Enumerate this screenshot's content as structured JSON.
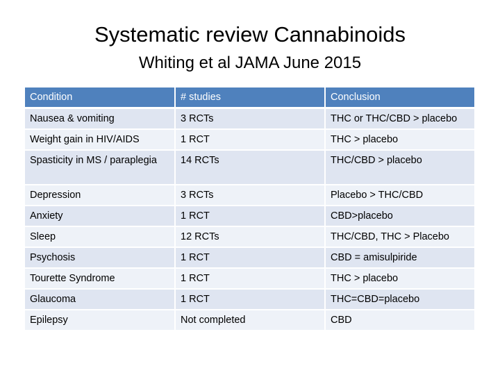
{
  "slide": {
    "title": "Systematic review Cannabinoids",
    "subtitle": "Whiting et al JAMA June 2015"
  },
  "table": {
    "headers": [
      "Condition",
      "# studies",
      "Conclusion"
    ],
    "rows": [
      [
        "Nausea & vomiting",
        "3 RCTs",
        "THC or THC/CBD > placebo"
      ],
      [
        "Weight gain in HIV/AIDS",
        "1 RCT",
        "THC > placebo"
      ],
      [
        "Spasticity in MS / paraplegia",
        "14 RCTs",
        "THC/CBD > placebo"
      ],
      [
        "Depression",
        "3 RCTs",
        "Placebo > THC/CBD"
      ],
      [
        "Anxiety",
        "1 RCT",
        "CBD>placebo"
      ],
      [
        "Sleep",
        "12 RCTs",
        "THC/CBD, THC > Placebo"
      ],
      [
        "Psychosis",
        "1 RCT",
        "CBD = amisulpiride"
      ],
      [
        "Tourette Syndrome",
        "1 RCT",
        "THC > placebo"
      ],
      [
        "Glaucoma",
        "1 RCT",
        "THC=CBD=placebo"
      ],
      [
        "Epilepsy",
        "Not completed",
        "CBD"
      ]
    ]
  },
  "colors": {
    "header_bg": "#4f81bd",
    "row_bg_odd": "#dfe5f1",
    "row_bg_even": "#eef2f8"
  }
}
